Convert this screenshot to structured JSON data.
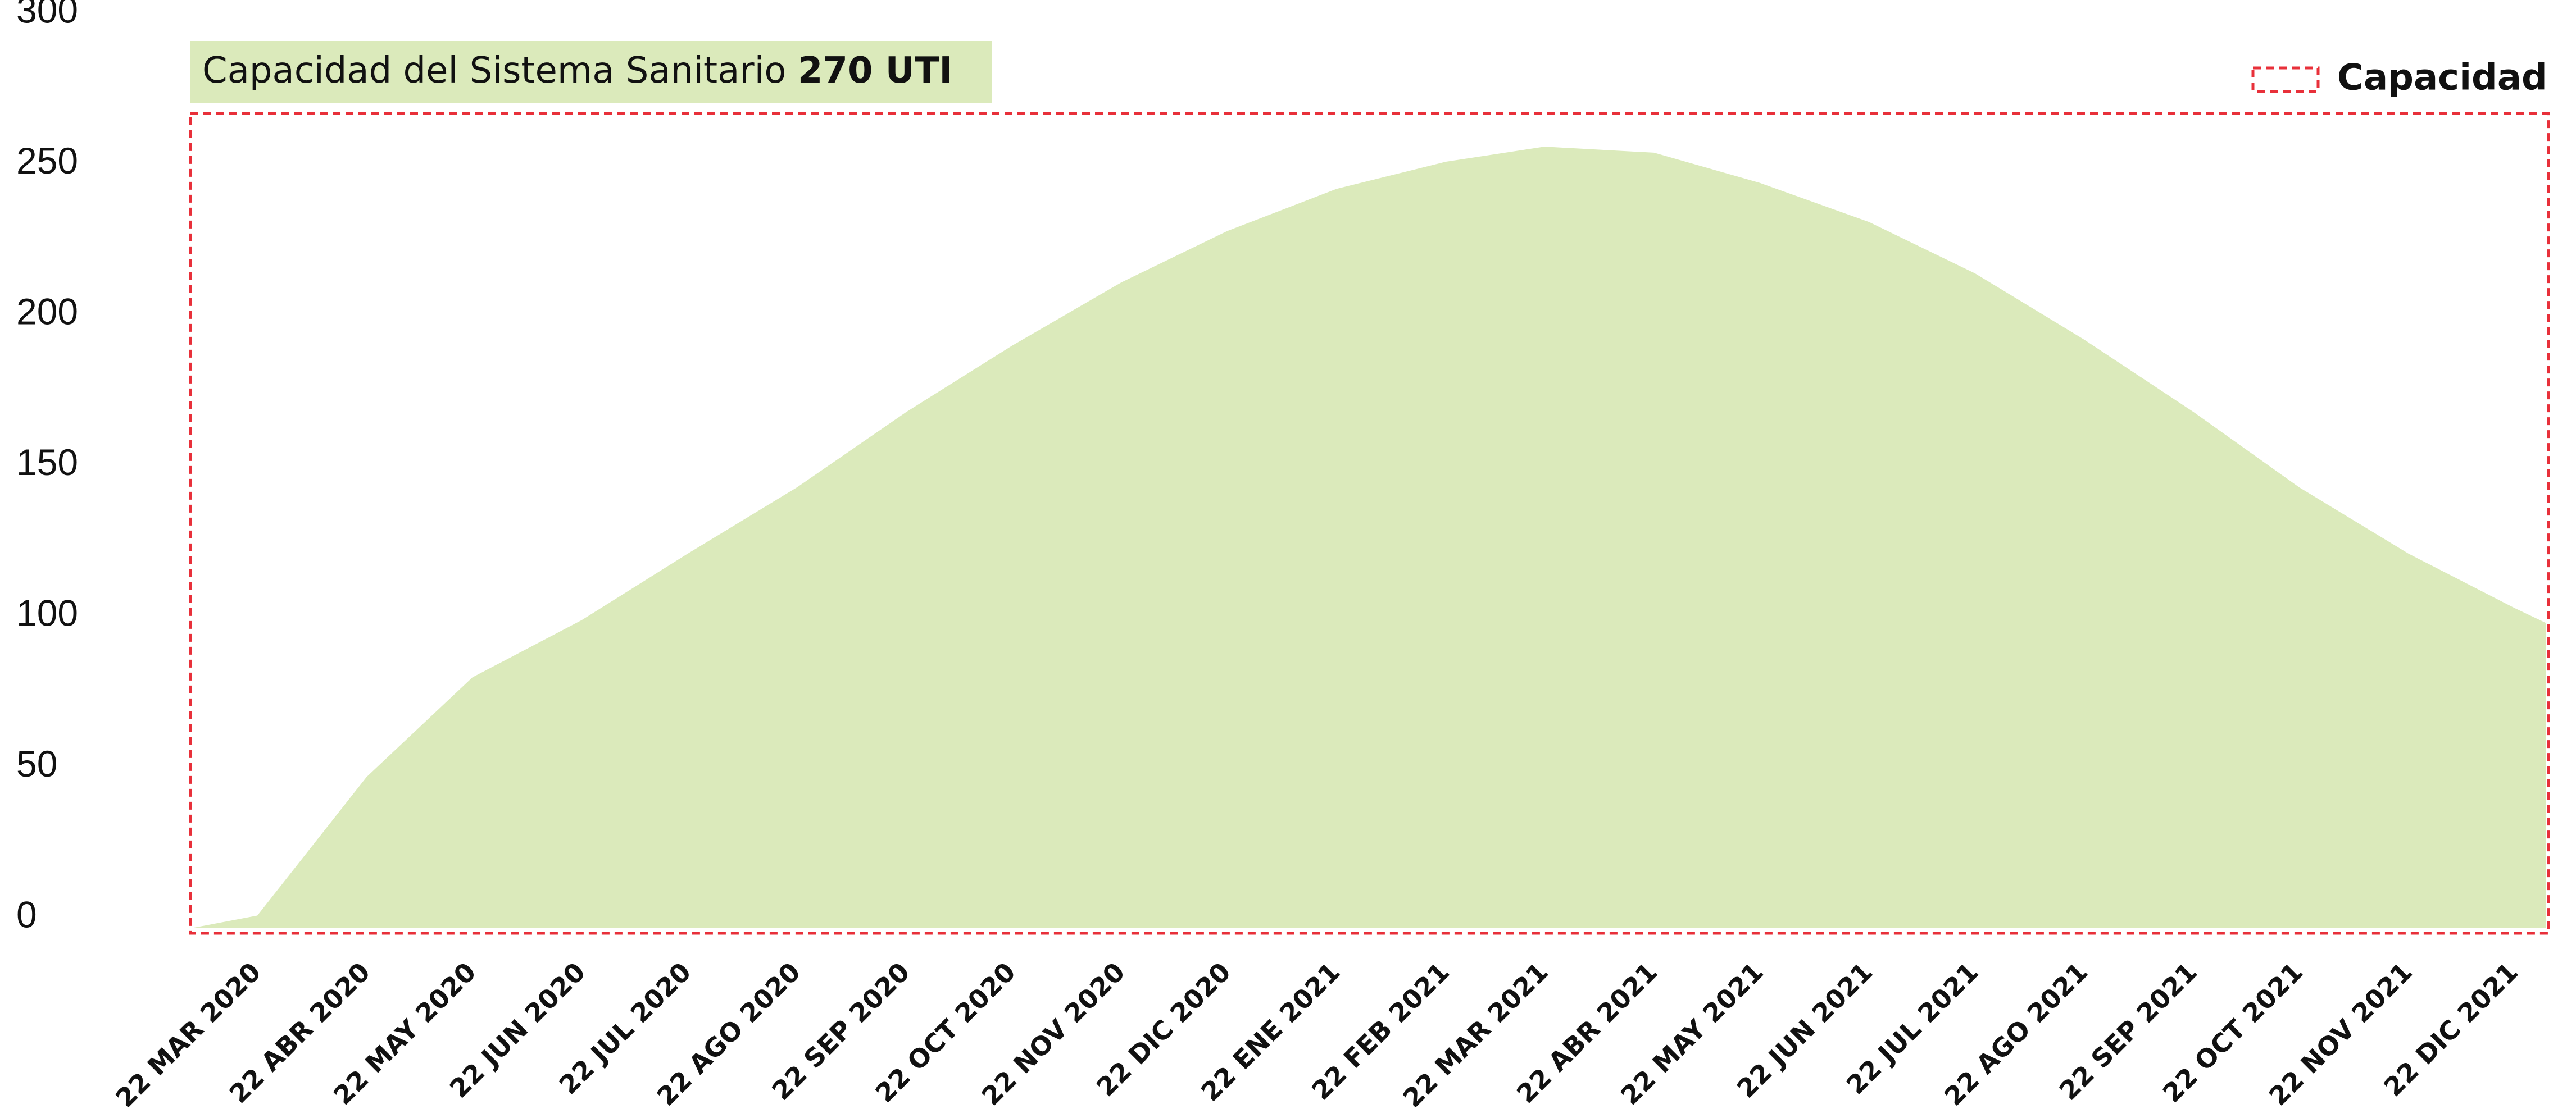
{
  "chart_data": {
    "type": "area",
    "title": "Capacidad del Sistema Sanitario",
    "capacity": 270,
    "capacity_label": "270 UTI",
    "legend": "Capacidad",
    "capacity_color": "#e8303a",
    "color": "#dbeabb",
    "x": [
      "2020-03-04",
      "2020-03-22",
      "2020-04-22",
      "2020-05-22",
      "2020-06-22",
      "2020-07-22",
      "2020-08-22",
      "2020-09-22",
      "2020-10-22",
      "2020-11-22",
      "2020-12-22",
      "2021-01-22",
      "2021-02-22",
      "2021-03-22",
      "2021-04-22",
      "2021-05-22",
      "2021-06-22",
      "2021-07-22",
      "2021-08-22",
      "2021-09-22",
      "2021-10-22",
      "2021-11-22",
      "2021-12-22",
      "2021-12-31"
    ],
    "values": [
      0,
      4,
      50,
      83,
      102,
      124,
      146,
      171,
      193,
      214,
      231,
      245,
      254,
      259,
      257,
      247,
      234,
      217,
      195,
      171,
      146,
      124,
      106,
      101
    ],
    "xticks": [
      {
        "value": "2020-03-22",
        "label": "22 MAR 2020"
      },
      {
        "value": "2020-04-22",
        "label": "22 ABR 2020"
      },
      {
        "value": "2020-05-22",
        "label": "22 MAY 2020"
      },
      {
        "value": "2020-06-22",
        "label": "22 JUN 2020"
      },
      {
        "value": "2020-07-22",
        "label": "22 JUL 2020"
      },
      {
        "value": "2020-08-22",
        "label": "22 AGO 2020"
      },
      {
        "value": "2020-09-22",
        "label": "22 SEP 2020"
      },
      {
        "value": "2020-10-22",
        "label": "22 OCT 2020"
      },
      {
        "value": "2020-11-22",
        "label": "22 NOV 2020"
      },
      {
        "value": "2020-12-22",
        "label": "22 DIC 2020"
      },
      {
        "value": "2021-01-22",
        "label": "22 ENE 2021"
      },
      {
        "value": "2021-02-22",
        "label": "22 FEB 2021"
      },
      {
        "value": "2021-03-22",
        "label": "22 MAR 2021"
      },
      {
        "value": "2021-04-22",
        "label": "22 ABR 2021"
      },
      {
        "value": "2021-05-22",
        "label": "22 MAY 2021"
      },
      {
        "value": "2021-06-22",
        "label": "22 JUN 2021"
      },
      {
        "value": "2021-07-22",
        "label": "22 JUL 2021"
      },
      {
        "value": "2021-08-22",
        "label": "22 AGO 2021"
      },
      {
        "value": "2021-09-22",
        "label": "22 SEP 2021"
      },
      {
        "value": "2021-10-22",
        "label": "22 OCT 2021"
      },
      {
        "value": "2021-11-22",
        "label": "22 NOV 2021"
      },
      {
        "value": "2021-12-22",
        "label": "22 DIC 2021"
      }
    ],
    "ylim": [
      0,
      300
    ],
    "yticks": [
      0,
      50,
      100,
      150,
      200,
      250,
      300
    ]
  }
}
